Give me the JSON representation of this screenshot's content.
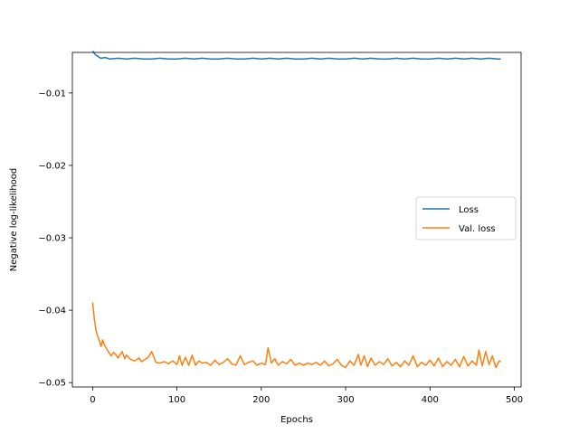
{
  "chart_data": {
    "type": "line",
    "title": "",
    "xlabel": "Epochs",
    "ylabel": "Negative log-likelihood",
    "xlim": [
      -24,
      508
    ],
    "ylim": [
      -0.0506,
      -0.0044
    ],
    "xticks": [
      0,
      100,
      200,
      300,
      400,
      500
    ],
    "xtick_labels": [
      "0",
      "100",
      "200",
      "300",
      "400",
      "500"
    ],
    "yticks": [
      -0.01,
      -0.02,
      -0.03,
      -0.04,
      -0.05
    ],
    "ytick_labels": [
      "−0.01",
      "−0.02",
      "−0.03",
      "−0.04",
      "−0.05"
    ],
    "grid": false,
    "legend": {
      "position": "center-right"
    },
    "series": [
      {
        "name": "Loss",
        "color": "#1f77b4",
        "x": [
          0,
          2,
          4,
          6,
          8,
          10,
          15,
          20,
          30,
          40,
          50,
          60,
          70,
          80,
          90,
          100,
          110,
          120,
          130,
          140,
          150,
          160,
          170,
          180,
          190,
          200,
          210,
          220,
          230,
          240,
          250,
          260,
          270,
          280,
          290,
          300,
          310,
          320,
          330,
          340,
          350,
          360,
          370,
          380,
          390,
          400,
          410,
          420,
          430,
          440,
          450,
          460,
          470,
          480,
          484
        ],
        "y": [
          -0.0042,
          -0.0045,
          -0.0048,
          -0.0049,
          -0.0051,
          -0.0052,
          -0.0051,
          -0.0053,
          -0.0052,
          -0.0053,
          -0.0052,
          -0.0053,
          -0.0053,
          -0.0052,
          -0.0053,
          -0.0053,
          -0.0052,
          -0.0053,
          -0.0052,
          -0.0053,
          -0.0053,
          -0.0052,
          -0.0053,
          -0.0053,
          -0.0052,
          -0.0053,
          -0.0052,
          -0.0053,
          -0.0052,
          -0.0053,
          -0.0053,
          -0.0052,
          -0.0053,
          -0.0052,
          -0.0053,
          -0.0053,
          -0.0052,
          -0.0053,
          -0.0052,
          -0.0053,
          -0.0053,
          -0.0052,
          -0.0053,
          -0.0052,
          -0.0053,
          -0.0053,
          -0.0052,
          -0.0053,
          -0.0052,
          -0.0053,
          -0.0052,
          -0.0053,
          -0.0052,
          -0.0053,
          -0.0053
        ]
      },
      {
        "name": "Val. loss",
        "color": "#ff7f0e",
        "x": [
          0,
          2,
          4,
          6,
          8,
          10,
          12,
          14,
          18,
          22,
          25,
          28,
          30,
          35,
          38,
          40,
          45,
          50,
          55,
          58,
          62,
          66,
          70,
          75,
          80,
          85,
          90,
          95,
          100,
          103,
          106,
          110,
          114,
          118,
          122,
          126,
          130,
          135,
          140,
          145,
          150,
          155,
          160,
          165,
          170,
          175,
          180,
          185,
          190,
          195,
          200,
          205,
          208,
          212,
          216,
          220,
          225,
          230,
          235,
          240,
          245,
          250,
          255,
          260,
          265,
          270,
          275,
          280,
          285,
          290,
          295,
          300,
          305,
          310,
          315,
          318,
          322,
          326,
          330,
          335,
          340,
          345,
          350,
          355,
          360,
          365,
          370,
          375,
          380,
          385,
          390,
          395,
          400,
          405,
          410,
          415,
          420,
          425,
          430,
          435,
          440,
          445,
          450,
          455,
          458,
          462,
          466,
          470,
          474,
          478,
          482,
          484
        ],
        "y": [
          -0.0389,
          -0.0412,
          -0.0428,
          -0.0436,
          -0.0442,
          -0.045,
          -0.0441,
          -0.0448,
          -0.0456,
          -0.0463,
          -0.0458,
          -0.0462,
          -0.0466,
          -0.0457,
          -0.0467,
          -0.0462,
          -0.0468,
          -0.047,
          -0.0466,
          -0.0471,
          -0.0468,
          -0.0465,
          -0.0457,
          -0.0472,
          -0.0473,
          -0.0471,
          -0.0474,
          -0.047,
          -0.0475,
          -0.0463,
          -0.0476,
          -0.0465,
          -0.0476,
          -0.0462,
          -0.0476,
          -0.047,
          -0.0473,
          -0.0472,
          -0.0476,
          -0.0469,
          -0.0475,
          -0.0472,
          -0.0467,
          -0.0474,
          -0.0476,
          -0.0463,
          -0.0475,
          -0.0472,
          -0.047,
          -0.0476,
          -0.0473,
          -0.0475,
          -0.0452,
          -0.0473,
          -0.0467,
          -0.0476,
          -0.0471,
          -0.0474,
          -0.0468,
          -0.0476,
          -0.0473,
          -0.0476,
          -0.0473,
          -0.0475,
          -0.0472,
          -0.0476,
          -0.047,
          -0.0477,
          -0.0474,
          -0.0468,
          -0.0476,
          -0.0479,
          -0.047,
          -0.0476,
          -0.0461,
          -0.0476,
          -0.0463,
          -0.0478,
          -0.0466,
          -0.0476,
          -0.0471,
          -0.0475,
          -0.0467,
          -0.0477,
          -0.0472,
          -0.0478,
          -0.047,
          -0.0476,
          -0.0463,
          -0.0478,
          -0.0472,
          -0.0476,
          -0.0469,
          -0.0477,
          -0.0466,
          -0.0478,
          -0.0471,
          -0.0476,
          -0.0468,
          -0.0478,
          -0.0464,
          -0.0477,
          -0.047,
          -0.0476,
          -0.0455,
          -0.0477,
          -0.0457,
          -0.0475,
          -0.0463,
          -0.0479,
          -0.047,
          -0.0471
        ]
      }
    ]
  }
}
